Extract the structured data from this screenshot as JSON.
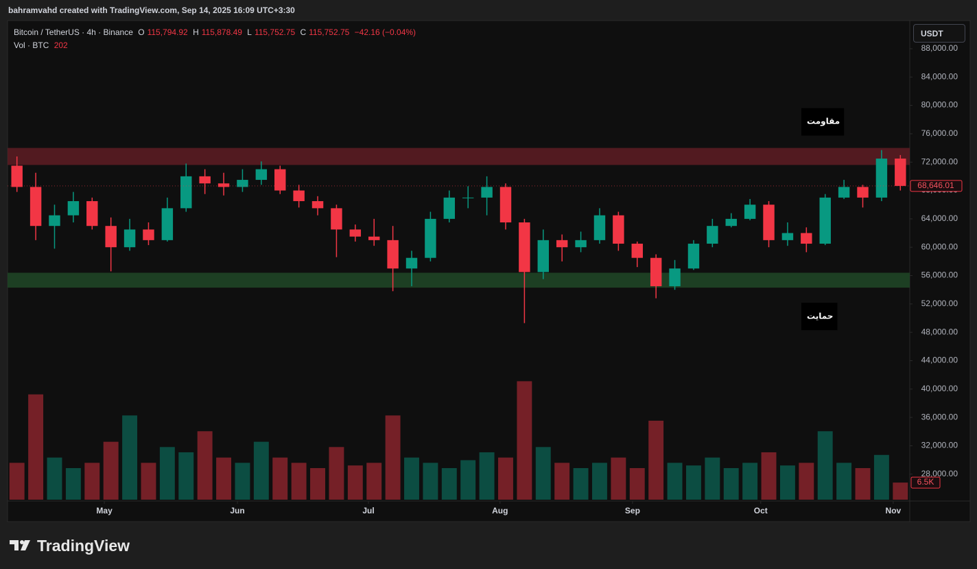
{
  "header": {
    "caption": "bahramvahd created with TradingView.com, Sep 14, 2025 16:09 UTC+3:30"
  },
  "legend": {
    "symbol": "Bitcoin / TetherUS · 4h · Binance",
    "ohlc": [
      {
        "key": "O",
        "value": "115,794.92"
      },
      {
        "key": "H",
        "value": "115,878.49"
      },
      {
        "key": "L",
        "value": "115,752.75"
      },
      {
        "key": "C",
        "value": "115,752.75"
      }
    ],
    "change": "−42.16 (−0.04%)",
    "volume_name": "Vol · BTC",
    "volume_value": "202"
  },
  "currency_button": "USDT",
  "footer": {
    "brand": "TradingView"
  },
  "chart_data": {
    "type": "candlestick",
    "categories": [
      null,
      null,
      null,
      null,
      null,
      null,
      null,
      null,
      null,
      null,
      null,
      null,
      null,
      null,
      null,
      null,
      null,
      null,
      null,
      null,
      null,
      null,
      null,
      null,
      null,
      null,
      null,
      null,
      null,
      null,
      null,
      null,
      null,
      null,
      null,
      null,
      null,
      null,
      null,
      null,
      null,
      null,
      null,
      null,
      null,
      null,
      null,
      null
    ],
    "open": [
      71500,
      68500,
      63000,
      64500,
      66500,
      63000,
      60000,
      62500,
      61000,
      65500,
      70000,
      69000,
      68500,
      69500,
      71000,
      68000,
      66500,
      65500,
      62500,
      61500,
      61000,
      57000,
      58500,
      64000,
      67000,
      67000,
      68500,
      63500,
      56500,
      61000,
      60000,
      61000,
      64500,
      60500,
      58500,
      54500,
      57000,
      60500,
      63000,
      64000,
      66000,
      61000,
      62000,
      60500,
      67000,
      68500,
      67000,
      72500
    ],
    "high": [
      72800,
      70500,
      66000,
      67800,
      67000,
      64200,
      64000,
      63500,
      67000,
      71800,
      71000,
      70500,
      71000,
      72100,
      71500,
      68800,
      67200,
      66000,
      63200,
      64000,
      63000,
      59500,
      65000,
      68000,
      68600,
      70000,
      69000,
      64000,
      62500,
      61800,
      62200,
      65500,
      65000,
      60800,
      59000,
      58200,
      61000,
      64000,
      64800,
      66800,
      66500,
      63500,
      62800,
      67500,
      69500,
      68800,
      73700,
      73000
    ],
    "low": [
      67800,
      61000,
      59800,
      63500,
      62500,
      56600,
      59500,
      60300,
      60800,
      65000,
      67500,
      67300,
      67800,
      68800,
      67500,
      65600,
      64500,
      58600,
      60800,
      60200,
      53800,
      54500,
      58000,
      63500,
      65500,
      64500,
      62500,
      49300,
      55500,
      58000,
      59300,
      60500,
      59500,
      57200,
      52800,
      54000,
      56800,
      60000,
      62800,
      63800,
      60000,
      60200,
      59300,
      60300,
      66800,
      65600,
      66500,
      68000
    ],
    "close": [
      68500,
      63000,
      64500,
      66500,
      63000,
      60000,
      62500,
      61000,
      65500,
      70000,
      69000,
      68500,
      69500,
      71000,
      68000,
      66500,
      65500,
      62500,
      61500,
      61000,
      57000,
      58500,
      64000,
      67000,
      67000,
      68500,
      63500,
      56500,
      61000,
      60000,
      61000,
      64500,
      60500,
      58500,
      54500,
      57000,
      60500,
      63000,
      64000,
      66000,
      61000,
      62000,
      60500,
      67000,
      68500,
      67000,
      72500,
      68646.01
    ],
    "volume": [
      14000,
      40000,
      16000,
      12000,
      14000,
      22000,
      32000,
      14000,
      20000,
      18000,
      26000,
      16000,
      14000,
      22000,
      16000,
      14000,
      12000,
      20000,
      13000,
      14000,
      32000,
      16000,
      14000,
      12000,
      15000,
      18000,
      16000,
      45000,
      20000,
      14000,
      12000,
      14000,
      16000,
      12000,
      30000,
      14000,
      13000,
      16000,
      12000,
      14000,
      18000,
      13000,
      14000,
      26000,
      14000,
      12000,
      17000,
      6500
    ],
    "up_color": "#089981",
    "down_color": "#f23645",
    "ylim": [
      24400,
      91960
    ],
    "yticks": [
      {
        "value": 28000,
        "label": "28,000.00"
      },
      {
        "value": 32000,
        "label": "32,000.00"
      },
      {
        "value": 36000,
        "label": "36,000.00"
      },
      {
        "value": 40000,
        "label": "40,000.00"
      },
      {
        "value": 44000,
        "label": "44,000.00"
      },
      {
        "value": 48000,
        "label": "48,000.00"
      },
      {
        "value": 52000,
        "label": "52,000.00"
      },
      {
        "value": 56000,
        "label": "56,000.00"
      },
      {
        "value": 60000,
        "label": "60,000.00"
      },
      {
        "value": 64000,
        "label": "64,000.00"
      },
      {
        "value": 68000,
        "label": "68,000.00"
      },
      {
        "value": 72000,
        "label": "72,000.00"
      },
      {
        "value": 76000,
        "label": "76,000.00"
      },
      {
        "value": 80000,
        "label": "80,000.00"
      },
      {
        "value": 84000,
        "label": "84,000.00"
      },
      {
        "value": 88000,
        "label": "88,000.00"
      }
    ],
    "xticks": [
      {
        "value": 4.65,
        "label": "May"
      },
      {
        "value": 11.73,
        "label": "Jun"
      },
      {
        "value": 18.7,
        "label": "Jul"
      },
      {
        "value": 25.7,
        "label": "Aug"
      },
      {
        "value": 32.75,
        "label": "Sep"
      },
      {
        "value": 39.57,
        "label": "Oct"
      },
      {
        "value": 46.62,
        "label": "Nov"
      }
    ],
    "volume_ylim": [
      0,
      182000
    ],
    "last_price": {
      "value": 68646.01,
      "label": "68,646.01"
    },
    "last_volume": {
      "value": 6500,
      "label": "6.5K"
    },
    "zones": [
      {
        "label": "مقاومت",
        "low": 71600,
        "high": 74000,
        "color": "#5a1c22",
        "side": "above"
      },
      {
        "label": "حمایت",
        "low": 54300,
        "high": 56400,
        "color": "#1f4526",
        "side": "below"
      }
    ]
  }
}
